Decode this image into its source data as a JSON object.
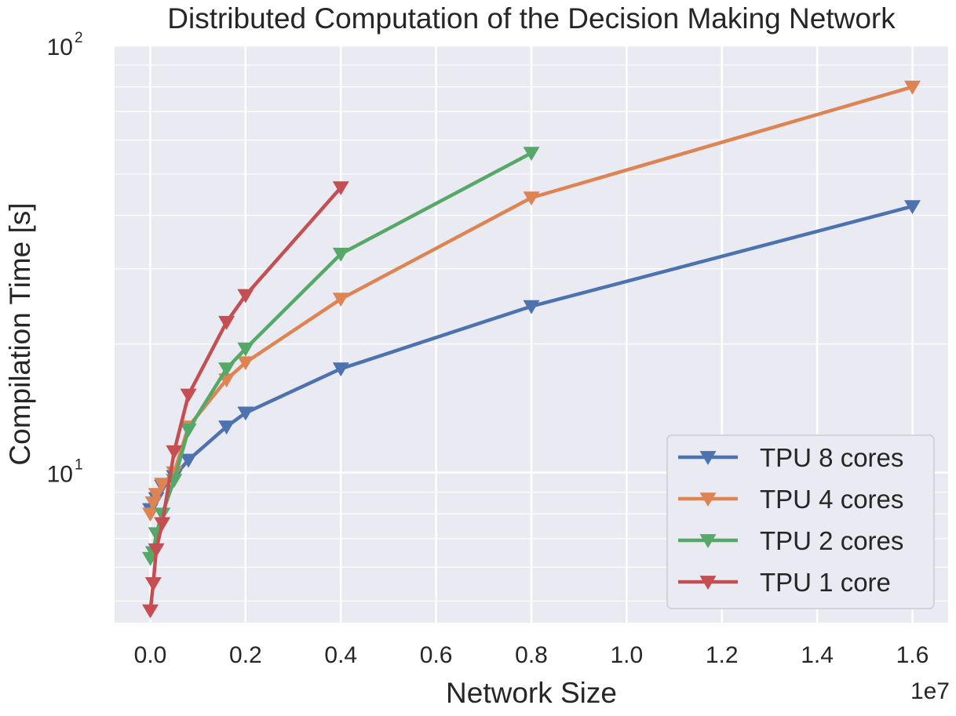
{
  "chart_data": {
    "type": "line",
    "title": "Distributed Computation of the Decision Making Network",
    "xlabel": "Network Size",
    "ylabel": "Compilation Time [s]",
    "x_offset_label": "1e7",
    "x_scale_note": "x values in units of 1e7",
    "y_scale": "log",
    "xlim": [
      -0.075,
      1.675
    ],
    "ylim": [
      4.45,
      100
    ],
    "grid": true,
    "legend_position": "lower right",
    "x_ticks": [
      {
        "value": 0.0,
        "label": "0.0"
      },
      {
        "value": 0.2,
        "label": "0.2"
      },
      {
        "value": 0.4,
        "label": "0.4"
      },
      {
        "value": 0.6,
        "label": "0.6"
      },
      {
        "value": 0.8,
        "label": "0.8"
      },
      {
        "value": 1.0,
        "label": "1.0"
      },
      {
        "value": 1.2,
        "label": "1.2"
      },
      {
        "value": 1.4,
        "label": "1.4"
      },
      {
        "value": 1.6,
        "label": "1.6"
      }
    ],
    "y_ticks": [
      {
        "value": 10,
        "base": "10",
        "exp": "1"
      },
      {
        "value": 100,
        "base": "10",
        "exp": "2"
      }
    ],
    "series": [
      {
        "name": "TPU 8 cores",
        "color": "#4c72b0",
        "marker": "triangle-down",
        "x": [
          0.0,
          0.00625,
          0.0125,
          0.025,
          0.05,
          0.08,
          0.16,
          0.2,
          0.4,
          0.8,
          1.6
        ],
        "y": [
          8.2,
          8.5,
          8.7,
          9.3,
          9.8,
          10.7,
          12.8,
          13.8,
          17.5,
          24.5,
          42.0
        ]
      },
      {
        "name": "TPU 4 cores",
        "color": "#dd8452",
        "marker": "triangle-down",
        "x": [
          0.0,
          0.00625,
          0.0125,
          0.025,
          0.05,
          0.08,
          0.16,
          0.2,
          0.4,
          0.8,
          1.6
        ],
        "y": [
          8.0,
          8.5,
          8.9,
          9.4,
          10.0,
          12.8,
          16.5,
          18.1,
          25.5,
          44.0,
          80.0
        ]
      },
      {
        "name": "TPU 2 cores",
        "color": "#55a868",
        "marker": "triangle-down",
        "x": [
          0.0,
          0.00625,
          0.0125,
          0.025,
          0.05,
          0.08,
          0.16,
          0.2,
          0.4,
          0.8
        ],
        "y": [
          6.3,
          6.5,
          7.2,
          8.0,
          9.6,
          12.6,
          17.5,
          19.5,
          32.5,
          56.0
        ]
      },
      {
        "name": "TPU 1 core",
        "color": "#c44e52",
        "marker": "triangle-down",
        "x": [
          0.0,
          0.00625,
          0.0125,
          0.025,
          0.05,
          0.08,
          0.16,
          0.2,
          0.4
        ],
        "y": [
          4.75,
          5.5,
          6.6,
          7.6,
          11.2,
          15.2,
          22.5,
          26.0,
          46.5
        ]
      }
    ]
  }
}
